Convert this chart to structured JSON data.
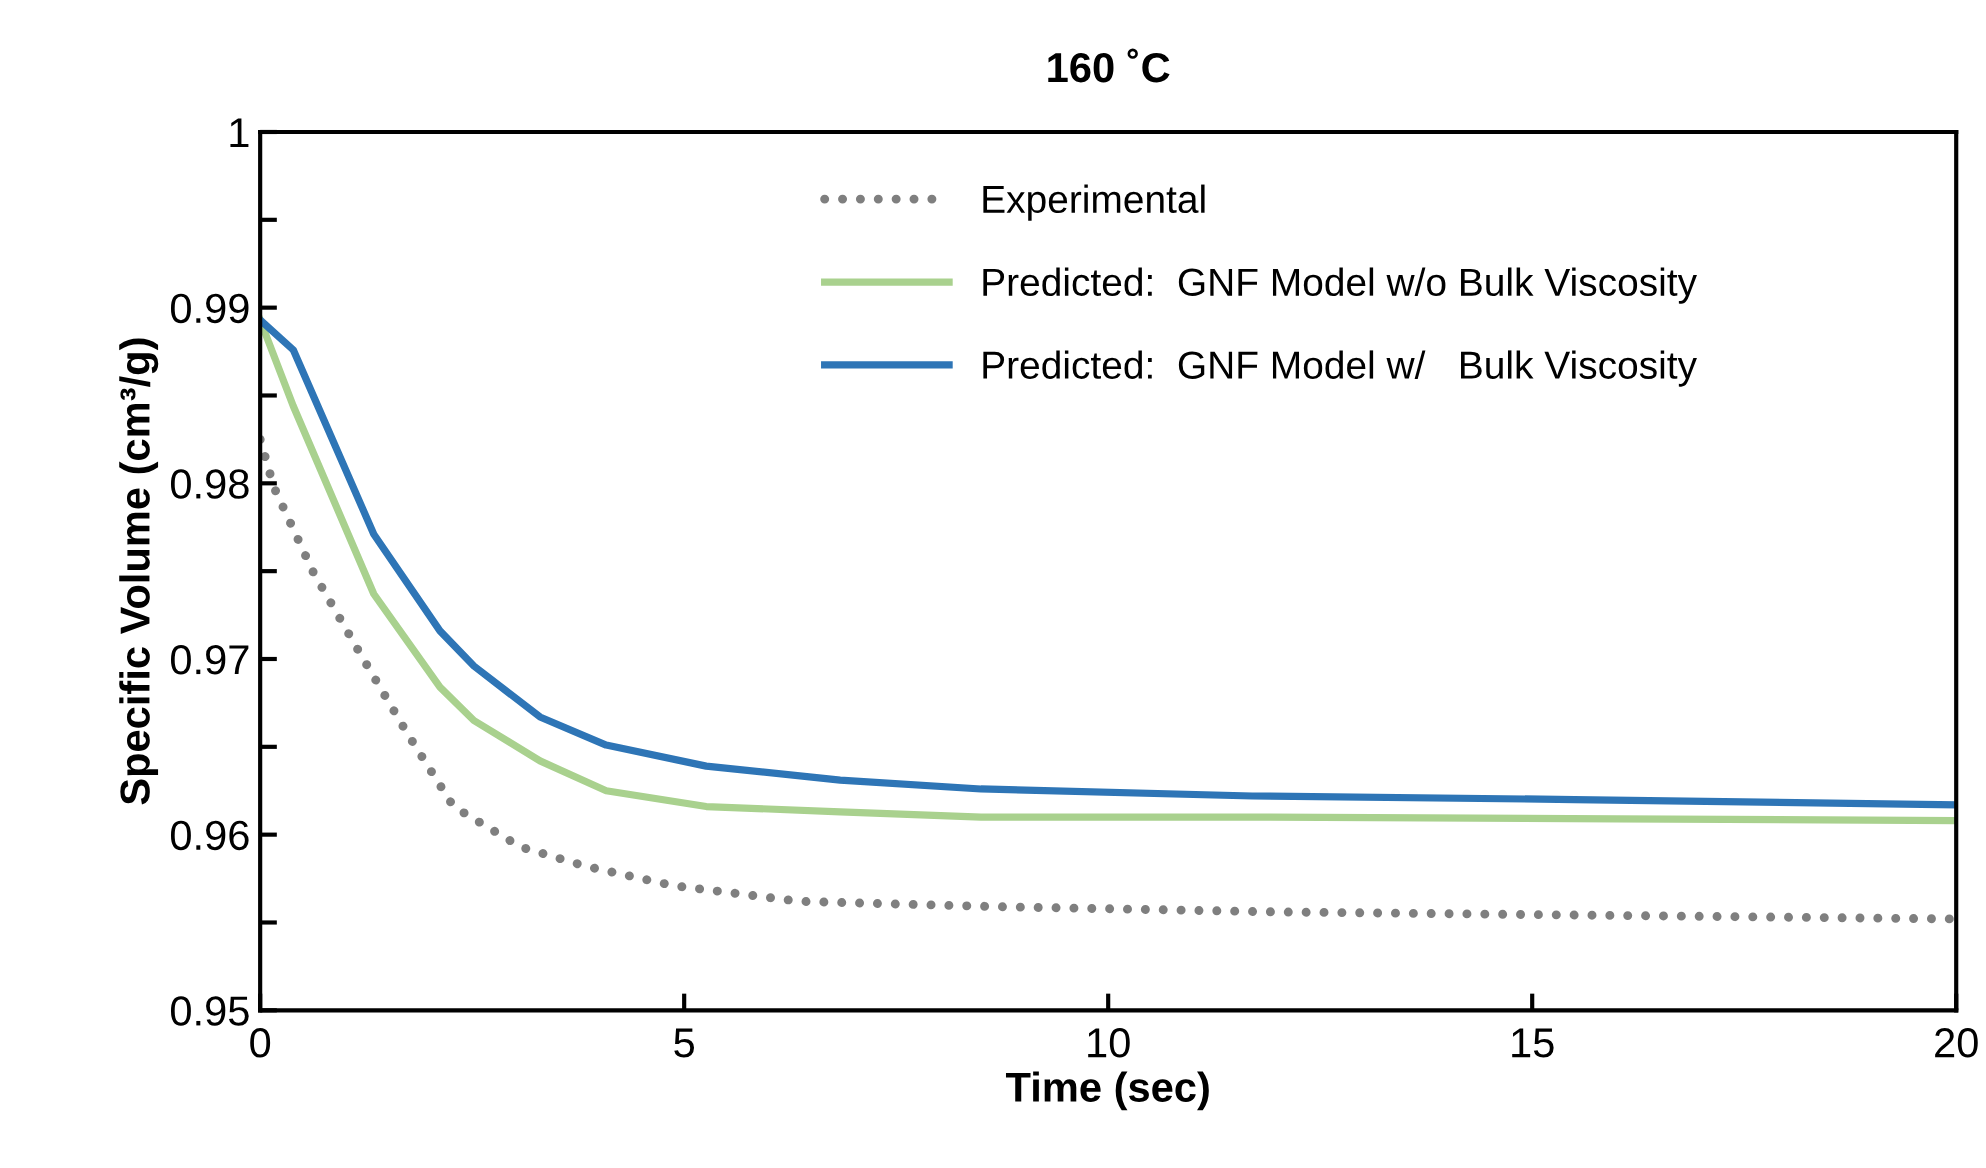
{
  "chart_data": {
    "type": "line",
    "title": "160 ˚C",
    "xlabel": "Time (sec)",
    "ylabel": "Specific Volume (cm³/g)",
    "xlim": [
      0,
      20
    ],
    "xticks": [
      0,
      5,
      10,
      15,
      20
    ],
    "ylim": [
      0.95,
      1
    ],
    "yticks": [
      0.95,
      0.96,
      0.97,
      0.98,
      0.99,
      {
        "value": 1,
        "label": "1"
      }
    ],
    "grid": false,
    "legend": "top",
    "marker": "none",
    "series": [
      {
        "name": "Experimental",
        "color": "#7f7f7f",
        "line_style": "dotted",
        "x": [
          0,
          0.16,
          0.63,
          1.18,
          1.73,
          2.28,
          3.07,
          3.84,
          4.87,
          6.37,
          8.7,
          12,
          16,
          20
        ],
        "values": [
          0.9825,
          0.9798,
          0.9749,
          0.9703,
          0.9658,
          0.9616,
          0.9593,
          0.9582,
          0.9571,
          0.9562,
          0.9559,
          0.9556,
          0.9554,
          0.9552
        ]
      },
      {
        "name": "Predicted:  GNF Model w/o Bulk Viscosity",
        "color": "#a9d18e",
        "line_style": "solid",
        "x": [
          0,
          0.39,
          1.34,
          2.12,
          2.52,
          3.3,
          4.08,
          5.26,
          6.84,
          8.5,
          11.7,
          16,
          20
        ],
        "values": [
          0.9893,
          0.9844,
          0.9737,
          0.9684,
          0.9665,
          0.9642,
          0.9625,
          0.9616,
          0.9613,
          0.961,
          0.961,
          0.9609,
          0.9608
        ]
      },
      {
        "name": "Predicted:  GNF Model w/   Bulk Viscosity",
        "color": "#2e75b6",
        "line_style": "solid",
        "x": [
          0,
          0.39,
          1.34,
          2.12,
          2.52,
          3.3,
          4.08,
          5.26,
          6.84,
          8.5,
          11.7,
          15.5,
          20
        ],
        "values": [
          0.9893,
          0.9876,
          0.9771,
          0.9716,
          0.9696,
          0.9667,
          0.9651,
          0.9639,
          0.9631,
          0.9626,
          0.9622,
          0.962,
          0.9617
        ]
      }
    ]
  }
}
